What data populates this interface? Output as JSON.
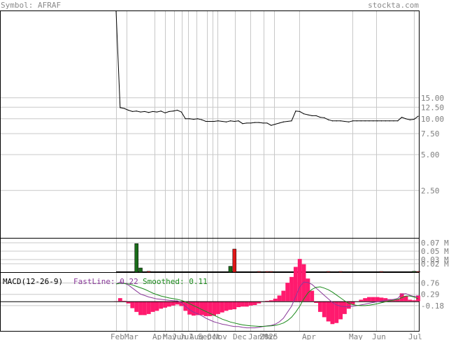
{
  "header": {
    "symbol_text": "Symbol: AFRAF",
    "site": "stockta.com"
  },
  "chart_data": [
    {
      "type": "line",
      "panel": "price",
      "scale": "log",
      "y_ticks": [
        "15.00",
        "12.50",
        "10.00",
        "7.50",
        "5.00",
        "2.50"
      ],
      "y_tick_values": [
        15,
        12.5,
        10,
        7.5,
        5,
        2.5
      ],
      "x": [
        "Jan-30",
        "Feb-06",
        "Feb-13",
        "Feb-20",
        "Feb-27",
        "Mar-06",
        "Mar-13",
        "Mar-20",
        "Mar-27",
        "Apr-03",
        "Apr-10",
        "Apr-17",
        "Apr-24",
        "May-01",
        "May-08",
        "May-15",
        "May-22",
        "May-29",
        "Jun-05",
        "Jun-12",
        "Jun-19",
        "Jun-26",
        "Jul-03",
        "Jul-10",
        "Jul-17",
        "Jul-24",
        "Jul-31",
        "Aug-07",
        "Aug-14",
        "Aug-21",
        "Aug-28",
        "Sep-04",
        "Sep-11",
        "Sep-18",
        "Sep-25",
        "Oct-02",
        "Oct-09",
        "Oct-16",
        "Oct-23",
        "Oct-30",
        "Nov-06",
        "Nov-13",
        "Nov-20",
        "Nov-27",
        "Dec-04",
        "Dec-11",
        "Dec-18",
        "Dec-25",
        "Jan-01",
        "Jan-08",
        "Jan-15",
        "Jan-22",
        "Jan-29",
        "Feb-05",
        "Feb-12",
        "Feb-19",
        "Feb-26",
        "Mar-05",
        "Mar-12",
        "Mar-19",
        "Mar-26",
        "Apr-02",
        "Apr-09",
        "Apr-16",
        "Apr-23",
        "Apr-30",
        "May-07",
        "May-14",
        "May-21",
        "May-28",
        "Jun-04",
        "Jun-11",
        "Jun-18",
        "Jun-25",
        "Jul-02"
      ],
      "values": [
        80,
        12.4,
        12.2,
        11.8,
        11.5,
        11.6,
        11.4,
        11.5,
        11.3,
        11.5,
        11.4,
        11.6,
        11.2,
        11.5,
        11.6,
        11.8,
        11.4,
        10.0,
        10.0,
        9.9,
        10.0,
        9.8,
        9.5,
        9.5,
        9.5,
        9.6,
        9.5,
        9.4,
        9.6,
        9.5,
        9.6,
        9.1,
        9.2,
        9.2,
        9.3,
        9.3,
        9.2,
        9.2,
        8.8,
        9.0,
        9.2,
        9.4,
        9.5,
        9.6,
        11.6,
        11.5,
        11.0,
        10.8,
        10.6,
        10.6,
        10.3,
        10.2,
        9.8,
        9.6,
        9.6,
        9.6,
        9.5,
        9.4,
        9.6,
        9.6,
        9.6,
        9.6,
        9.6,
        9.6,
        9.6,
        9.6,
        9.6,
        9.6,
        9.6,
        9.6,
        10.3,
        10.0,
        9.8,
        9.9,
        10.5
      ],
      "xlabel": "",
      "ylabel": ""
    },
    {
      "type": "bar",
      "panel": "volume",
      "y_ticks": [
        "0.07 M",
        "0.05 M",
        "0.03 M",
        "0.02 M"
      ],
      "y_tick_values": [
        0.07,
        0.05,
        0.03,
        0.02
      ],
      "bars": [
        {
          "date": "Mar-06",
          "value": 0.068,
          "direction": "up"
        },
        {
          "date": "Mar-13",
          "value": 0.01,
          "direction": "up"
        },
        {
          "date": "Mar-27",
          "value": 0.002,
          "direction": "down"
        },
        {
          "date": "Aug-14",
          "value": 0.014,
          "direction": "up"
        },
        {
          "date": "Aug-21",
          "value": 0.055,
          "direction": "down"
        },
        {
          "date": "Oct-02",
          "value": 0.001,
          "direction": "down"
        },
        {
          "date": "Oct-16",
          "value": 0.001,
          "direction": "down"
        },
        {
          "date": "Oct-23",
          "value": 0.001,
          "direction": "down"
        },
        {
          "date": "Jan-29",
          "value": 0.001,
          "direction": "down"
        },
        {
          "date": "Feb-19",
          "value": 0.001,
          "direction": "down"
        },
        {
          "date": "Apr-30",
          "value": 0.001,
          "direction": "down"
        },
        {
          "date": "Jun-25",
          "value": 0.002,
          "direction": "up"
        },
        {
          "date": "Jul-02",
          "value": 0.001,
          "direction": "down"
        }
      ]
    },
    {
      "type": "line",
      "panel": "macd",
      "title": "MACD(12-26-9)",
      "fastline_text": "FastLine: 0.22",
      "smoothed_text": "Smoothed: 0.11",
      "y_ticks": [
        "0.76",
        "0.29",
        "-0.18"
      ],
      "y_tick_values": [
        0.76,
        0.29,
        -0.18
      ],
      "fast": [
        0.72,
        0.8,
        0.75,
        0.68,
        0.55,
        0.42,
        0.3,
        0.24,
        0.18,
        0.14,
        0.1,
        0.08,
        0.06,
        0.04,
        0.03,
        0.02,
        -0.05,
        -0.2,
        -0.35,
        -0.45,
        -0.52,
        -0.6,
        -0.7,
        -0.78,
        -0.85,
        -0.9,
        -0.95,
        -0.98,
        -1.02,
        -1.05,
        -1.05,
        -1.08,
        -1.1,
        -1.1,
        -1.1,
        -1.08,
        -1.05,
        -1.02,
        -1.0,
        -0.95,
        -0.85,
        -0.7,
        -0.45,
        -0.2,
        0.2,
        0.6,
        0.8,
        0.78,
        0.7,
        0.55,
        0.4,
        0.25,
        0.1,
        -0.05,
        -0.15,
        -0.2,
        -0.22,
        -0.22,
        -0.2,
        -0.18,
        -0.15,
        -0.12,
        -0.08,
        -0.05,
        -0.02,
        0.01,
        0.04,
        0.06,
        0.08,
        0.12,
        0.3,
        0.32,
        0.25,
        0.2,
        0.22
      ],
      "smoothed": [
        0.72,
        0.74,
        0.74,
        0.72,
        0.68,
        0.62,
        0.56,
        0.5,
        0.42,
        0.34,
        0.28,
        0.22,
        0.18,
        0.14,
        0.11,
        0.08,
        0.04,
        -0.02,
        -0.1,
        -0.18,
        -0.26,
        -0.34,
        -0.42,
        -0.5,
        -0.58,
        -0.66,
        -0.74,
        -0.8,
        -0.86,
        -0.9,
        -0.94,
        -0.98,
        -1.0,
        -1.02,
        -1.03,
        -1.04,
        -1.04,
        -1.03,
        -1.02,
        -1.0,
        -0.96,
        -0.9,
        -0.8,
        -0.66,
        -0.45,
        -0.2,
        0.1,
        0.35,
        0.5,
        0.58,
        0.6,
        0.55,
        0.48,
        0.38,
        0.26,
        0.14,
        0.02,
        -0.08,
        -0.14,
        -0.17,
        -0.18,
        -0.18,
        -0.16,
        -0.13,
        -0.1,
        -0.06,
        -0.02,
        0.02,
        0.05,
        0.08,
        0.15,
        0.22,
        0.22,
        0.18,
        0.11
      ]
    }
  ],
  "x_axis_labels": [
    "Feb",
    "Mar",
    "Apr",
    "May",
    "Jun",
    "Jul",
    "Aug",
    "Sep",
    "Oct",
    "Nov",
    "Dec",
    "Jan",
    "2025",
    "Mar",
    "Apr",
    "May",
    "Jun",
    "Jul"
  ],
  "colors": {
    "price_line": "#000000",
    "vol_up": "#1a6b1a",
    "vol_down": "#e01818",
    "fast": "#8a3a9a",
    "smoothed": "#1a8a1a",
    "histogram": "#ff1a6e",
    "grid": "#c8c8c8"
  }
}
